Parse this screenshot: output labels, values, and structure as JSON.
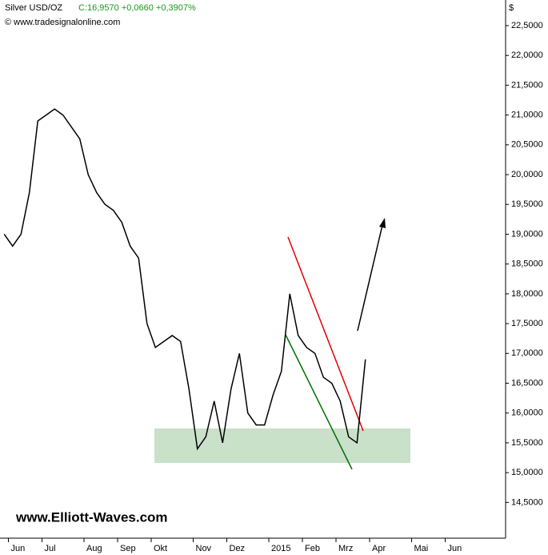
{
  "chart_data": {
    "type": "line",
    "title": "Silver USD/OZ",
    "subtitle": "C:16,9570 +0,0660 +0,3907%",
    "source": "© www.tradesignalonline.com",
    "axis_unit": "$",
    "watermark": "www.Elliott-Waves.com",
    "categories": [
      null,
      "Jun",
      null,
      null,
      null,
      "Jul",
      null,
      null,
      null,
      null,
      "Aug",
      null,
      null,
      null,
      "Sep",
      null,
      null,
      null,
      "Okt",
      null,
      null,
      null,
      null,
      "Nov",
      null,
      null,
      null,
      "Dez",
      null,
      null,
      null,
      null,
      "2015",
      null,
      null,
      null,
      "Feb",
      null,
      null,
      null,
      "Mrz",
      null,
      null,
      null,
      "Apr",
      null,
      null,
      null,
      null,
      "Mai",
      null,
      null,
      null,
      "Jun",
      null,
      null,
      null,
      null,
      null,
      null
    ],
    "series": [
      {
        "name": "Silver USD/OZ",
        "color": "#000000",
        "values": [
          19.0,
          18.8,
          19.0,
          19.7,
          20.9,
          21.0,
          21.1,
          21.0,
          20.8,
          20.6,
          20.0,
          19.7,
          19.5,
          19.4,
          19.2,
          18.8,
          18.6,
          17.5,
          17.1,
          17.2,
          17.3,
          17.2,
          16.4,
          15.4,
          15.6,
          16.2,
          15.5,
          16.4,
          17.0,
          16.0,
          15.8,
          15.8,
          16.3,
          16.7,
          18.0,
          17.3,
          17.1,
          17.0,
          16.6,
          16.5,
          16.2,
          15.6,
          15.5,
          16.9,
          null,
          null,
          null,
          null,
          null,
          null,
          null,
          null,
          null,
          null,
          null,
          null,
          null,
          null,
          null,
          null
        ]
      }
    ],
    "ylim": [
      13.9,
      22.93
    ],
    "yticks": [
      {
        "value": 14.5,
        "label": "14,5000"
      },
      {
        "value": 15,
        "label": "15,0000"
      },
      {
        "value": 15.5,
        "label": "15,5000"
      },
      {
        "value": 16,
        "label": "16,0000"
      },
      {
        "value": 16.5,
        "label": "16,5000"
      },
      {
        "value": 17,
        "label": "17,0000"
      },
      {
        "value": 17.5,
        "label": "17,5000"
      },
      {
        "value": 18,
        "label": "18,0000"
      },
      {
        "value": 18.5,
        "label": "18,5000"
      },
      {
        "value": 19,
        "label": "19,0000"
      },
      {
        "value": 19.5,
        "label": "19,5000"
      },
      {
        "value": 20,
        "label": "20,0000"
      },
      {
        "value": 20.5,
        "label": "20,5000"
      },
      {
        "value": 21,
        "label": "21,0000"
      },
      {
        "value": 21.5,
        "label": "21,5000"
      },
      {
        "value": 22,
        "label": "22,0000"
      },
      {
        "value": 22.5,
        "label": "22,5000"
      }
    ],
    "grid": false
  }
}
